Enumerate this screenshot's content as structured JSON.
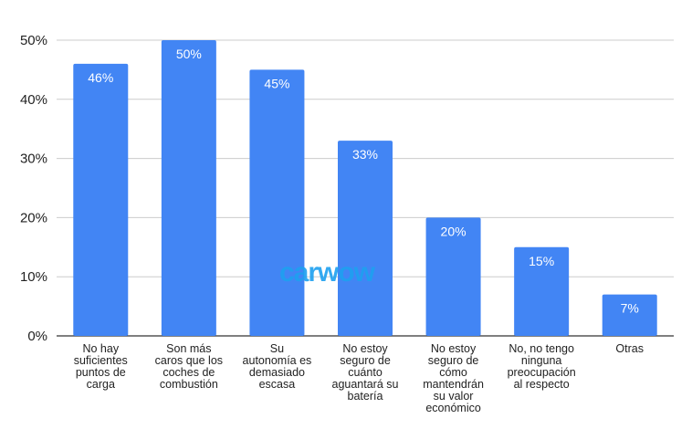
{
  "watermark": "carwow",
  "colors": {
    "bar": "#4285f4",
    "grid": "#cccccc",
    "axis": "#333333",
    "watermark": "#1ea0f0"
  },
  "chart_data": {
    "type": "bar",
    "title": "",
    "xlabel": "",
    "ylabel": "",
    "ylim": [
      0,
      50
    ],
    "yticks": [
      "0%",
      "10%",
      "20%",
      "30%",
      "40%",
      "50%"
    ],
    "grid": true,
    "legend": "none",
    "categories": [
      [
        "No hay",
        "suficientes",
        "puntos de",
        "carga"
      ],
      [
        "Son más",
        "caros que los",
        "coches de",
        "combustión"
      ],
      [
        "Su",
        "autonomía es",
        "demasiado",
        "escasa"
      ],
      [
        "No estoy",
        "seguro de",
        "cuánto",
        "aguantará su",
        "batería"
      ],
      [
        "No estoy",
        "seguro de",
        "cómo",
        "mantendrán",
        "su valor",
        "económico"
      ],
      [
        "No, no tengo",
        "ninguna",
        "preocupación",
        "al respecto"
      ],
      [
        "Otras"
      ]
    ],
    "values": [
      46,
      50,
      45,
      33,
      20,
      15,
      7
    ],
    "labels": [
      "46%",
      "50%",
      "45%",
      "33%",
      "20%",
      "15%",
      "7%"
    ]
  }
}
